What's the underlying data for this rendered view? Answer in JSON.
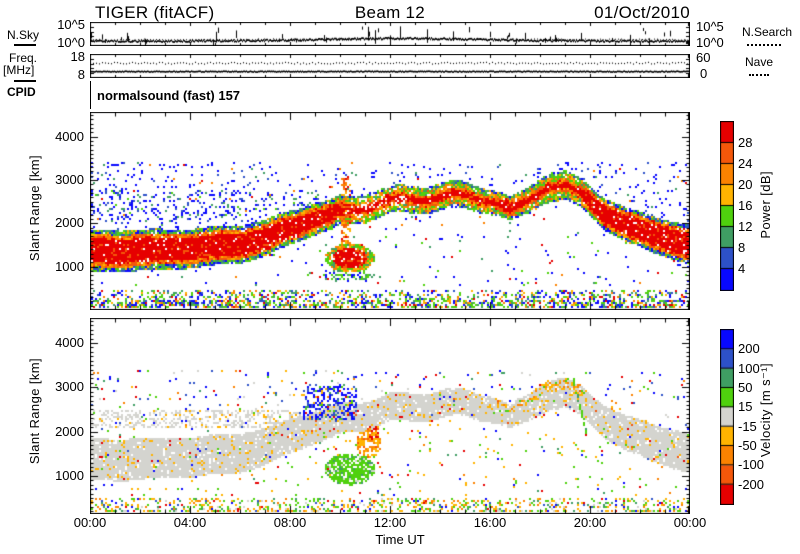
{
  "palette": {
    "red": "#e60000",
    "dkorange": "#f4570a",
    "orange": "#fb8200",
    "amber": "#ffb300",
    "green": "#4fd10e",
    "seagreen": "#3f9e63",
    "medblue": "#2d51c8",
    "blue": "#0808ff",
    "grey": "#d4d4cf"
  },
  "header": {
    "title": "TIGER (fitACF)",
    "beam": "Beam 12",
    "date": "01/Oct/2010"
  },
  "noise_row": {
    "axis_label": "N.Sky",
    "left_top": "10^5",
    "left_bottom": "10^0",
    "right_top": "10^5",
    "right_bottom": "10^0",
    "legend": "N.Search"
  },
  "freq_row": {
    "axis_label_line1": "Freq.",
    "axis_label_line2": "[MHz]",
    "left_top": "18",
    "left_bottom": "8",
    "right_top": "60",
    "right_bottom": "0",
    "legend": "Nave"
  },
  "cpid_row": {
    "label": "CPID",
    "value": "normalsound (fast) 157"
  },
  "xaxis": {
    "label": "Time UT",
    "tick_labels": [
      "00:00",
      "04:00",
      "08:00",
      "12:00",
      "16:00",
      "20:00",
      "00:00"
    ]
  },
  "yaxis_label": "Slant Range [km]",
  "power_colorbar": {
    "label": "Power [dB]",
    "tick_labels": [
      "28",
      "24",
      "20",
      "16",
      "12",
      "8",
      "4"
    ],
    "colors_top_to_bottom": [
      "red",
      "dkorange",
      "orange",
      "amber",
      "green",
      "seagreen",
      "medblue",
      "blue"
    ]
  },
  "velocity_colorbar": {
    "label": "Velocity [m s⁻¹]",
    "tick_labels": [
      "200",
      "100",
      "50",
      "15",
      "-15",
      "-50",
      "-100",
      "-200"
    ],
    "colors_top_to_bottom": [
      "blue",
      "medblue",
      "seagreen",
      "green",
      "grey",
      "amber",
      "orange",
      "dkorange",
      "red"
    ]
  },
  "chart_data": [
    {
      "id": "noise",
      "type": "line",
      "panel": "sky-noise",
      "yscale": "log",
      "ytick_values": [
        "10^0",
        "10^5"
      ],
      "seed": 7,
      "series": [
        {
          "name": "N.Sky",
          "style": "solid",
          "baseline_frac": 0.8,
          "midday_hump_frac": 0.11,
          "spike_prob": 0.085
        },
        {
          "name": "N.Search",
          "style": "dotted",
          "baseline_frac": 0.72,
          "midday_hump_frac": 0.05
        }
      ]
    },
    {
      "id": "freq",
      "type": "line",
      "panel": "frequency",
      "ytick_values": [
        8,
        18
      ],
      "seed": 11,
      "right_axis": {
        "name": "Nave",
        "ticks": [
          0,
          60
        ]
      },
      "series": [
        {
          "name": "Freq",
          "style": "solid",
          "level_frac": 0.7
        },
        {
          "name": "Nave",
          "style": "dotted",
          "level_frac": 0.36
        }
      ]
    },
    {
      "id": "power",
      "type": "heatmap",
      "x_hours": [
        0,
        24
      ],
      "km_top": 4573,
      "km_bottom": 0,
      "ytick_km": [
        1000,
        2000,
        3000,
        4000
      ],
      "xtick_hours": [
        0,
        4,
        8,
        12,
        16,
        20,
        24
      ],
      "units": "dB",
      "seed": 987654,
      "main_band": [
        [
          0,
          1350,
          450
        ],
        [
          2,
          1380,
          450
        ],
        [
          4,
          1420,
          430
        ],
        [
          6,
          1520,
          420
        ],
        [
          7,
          1650,
          400
        ],
        [
          8,
          1900,
          370
        ],
        [
          9,
          2100,
          350
        ],
        [
          10,
          2250,
          330
        ],
        [
          11,
          2400,
          310
        ],
        [
          12,
          2500,
          300
        ],
        [
          13,
          2560,
          300
        ],
        [
          14,
          2620,
          300
        ],
        [
          15,
          2620,
          290
        ],
        [
          16,
          2560,
          280
        ],
        [
          16.8,
          2330,
          260
        ],
        [
          17.5,
          2520,
          290
        ],
        [
          18.3,
          2820,
          330
        ],
        [
          19,
          2880,
          320
        ],
        [
          19.6,
          2700,
          320
        ],
        [
          20.5,
          2250,
          350
        ],
        [
          21.5,
          1950,
          380
        ],
        [
          22.5,
          1750,
          400
        ],
        [
          24,
          1500,
          430
        ]
      ],
      "red_core": [
        [
          0,
          0.62
        ],
        [
          8.5,
          0.55
        ],
        [
          10,
          0.42
        ],
        [
          10.8,
          0.24
        ],
        [
          16.3,
          0.24
        ],
        [
          16.6,
          0.5
        ],
        [
          17.6,
          0.2
        ],
        [
          19.5,
          0.18
        ],
        [
          20,
          0.55
        ],
        [
          24,
          0.62
        ]
      ],
      "hole_prob": [
        [
          0,
          0.05
        ],
        [
          10.2,
          0.05
        ],
        [
          10.6,
          0.2
        ],
        [
          12.6,
          0.2
        ],
        [
          13,
          0.06
        ],
        [
          24,
          0.06
        ]
      ],
      "streak": {
        "t": [
          10.05,
          10.45
        ],
        "km": [
          1500,
          3080
        ],
        "p": 0.5,
        "colors": [
          [
            "orange",
            4
          ],
          [
            "dkorange",
            3
          ],
          [
            "amber",
            2
          ],
          [
            "red",
            2
          ]
        ]
      },
      "blobs": [
        {
          "t": 10.4,
          "km": 1200,
          "rt": 1.0,
          "rkm": 330,
          "p": 0.85,
          "core": 0.5,
          "core_colors": [
            [
              "red",
              8
            ],
            [
              "dkorange",
              2
            ]
          ],
          "edge_colors": [
            [
              "green",
              4
            ],
            [
              "orange",
              3
            ],
            [
              "amber",
              2
            ],
            [
              "seagreen",
              1
            ]
          ]
        },
        {
          "t": 10.4,
          "km": 780,
          "rt": 1.1,
          "rkm": 150,
          "p": 0.35,
          "core": 0.0,
          "core_colors": [
            [
              "green",
              1
            ]
          ],
          "edge_colors": [
            [
              "green",
              5
            ],
            [
              "seagreen",
              3
            ],
            [
              "blue",
              2
            ]
          ]
        }
      ],
      "cloud": {
        "t": [
          0,
          9.2
        ],
        "km": [
          2050,
          2750
        ],
        "p": 0.13,
        "colors": [
          [
            "blue",
            5
          ],
          [
            "medblue",
            3
          ],
          [
            "seagreen",
            2
          ],
          [
            "green",
            1
          ]
        ]
      },
      "above_prob": [
        [
          0,
          0.1
        ],
        [
          9.5,
          0.05
        ],
        [
          12,
          0.08
        ],
        [
          16.5,
          0.045
        ],
        [
          20,
          0.07
        ],
        [
          24,
          0.07
        ]
      ],
      "above_colors": [
        [
          "blue",
          7
        ],
        [
          "medblue",
          2
        ],
        [
          "seagreen",
          1
        ],
        [
          "orange",
          0.5
        ],
        [
          "red",
          0.3
        ]
      ],
      "below_colors": [
        [
          "blue",
          4
        ],
        [
          "green",
          2
        ],
        [
          "seagreen",
          1
        ],
        [
          "orange",
          1
        ],
        [
          "red",
          1
        ]
      ],
      "bottom_colors": [
        [
          "green",
          28
        ],
        [
          "blue",
          22
        ],
        [
          "seagreen",
          14
        ],
        [
          "amber",
          12
        ],
        [
          "medblue",
          8
        ],
        [
          "orange",
          8
        ],
        [
          "red",
          8
        ]
      ],
      "band_colors_inner": [
        [
          "dkorange",
          5
        ],
        [
          "orange",
          4
        ],
        [
          "red",
          2
        ],
        [
          "amber",
          2
        ]
      ],
      "band_colors_mid": [
        [
          "green",
          5
        ],
        [
          "amber",
          3
        ],
        [
          "orange",
          3
        ],
        [
          "seagreen",
          2
        ],
        [
          "dkorange",
          1
        ]
      ],
      "band_colors_edge": [
        [
          "seagreen",
          3
        ],
        [
          "green",
          3
        ],
        [
          "medblue",
          2
        ],
        [
          "blue",
          2
        ],
        [
          "amber",
          1
        ]
      ]
    },
    {
      "id": "velocity",
      "type": "heatmap",
      "x_hours": [
        0,
        24
      ],
      "km_top": 4563,
      "km_bottom": 140,
      "ytick_km": [
        1000,
        2000,
        3000,
        4000
      ],
      "xtick_hours": [
        0,
        4,
        8,
        12,
        16,
        20,
        24
      ],
      "units": "m/s",
      "seed": 24681357,
      "main_band_ref": "power",
      "grey_p": 0.93,
      "amber_speckle_p": 0.07,
      "dot_colors": [
        [
          "red",
          2
        ],
        [
          "blue",
          2
        ],
        [
          "green",
          2
        ],
        [
          "dkorange",
          1
        ],
        [
          "medblue",
          1
        ]
      ],
      "grey_band2": {
        "t": [
          0,
          8.6
        ],
        "km": [
          2080,
          2480
        ],
        "p": 0.32
      },
      "blue_patch": {
        "t": [
          8.55,
          10.7
        ],
        "km": [
          2250,
          3020
        ],
        "p": 0.42,
        "colors": [
          [
            "blue",
            11
          ],
          [
            "medblue",
            4
          ],
          [
            "green",
            2
          ],
          [
            "seagreen",
            1
          ],
          [
            "red",
            1
          ],
          [
            "amber",
            1
          ]
        ]
      },
      "green_blob": {
        "t": 10.4,
        "km": 1150,
        "rt": 1.0,
        "rkm": 360,
        "p": 0.75,
        "colors": [
          [
            "green",
            8
          ],
          [
            "seagreen",
            1
          ],
          [
            "grey",
            1
          ]
        ]
      },
      "orange_blob": {
        "t": 11.15,
        "km": 1750,
        "rt": 0.5,
        "rkm": 330,
        "p": 0.65,
        "colors": [
          [
            "amber",
            5
          ],
          [
            "orange",
            3
          ],
          [
            "dkorange",
            1
          ]
        ]
      },
      "red_spot": {
        "t": 11.32,
        "km": 1980,
        "rt": 0.28,
        "rkm": 170,
        "p": 0.7,
        "colors": [
          [
            "red",
            3
          ],
          [
            "dkorange",
            1
          ]
        ]
      },
      "green_streak": {
        "t": [
          19.35,
          19.9
        ],
        "km_start": 3150,
        "km_end": 1900,
        "halfwidth": 90,
        "p": 0.85,
        "colors": [
          [
            "green",
            9
          ],
          [
            "seagreen",
            1
          ]
        ]
      },
      "hump_amber": {
        "t": [
          16.3,
          19.9
        ],
        "p": 0.3,
        "colors": [
          [
            "amber",
            6
          ],
          [
            "orange",
            3
          ],
          [
            "green",
            1
          ]
        ]
      },
      "above_prob": 0.04,
      "above_colors": [
        [
          "blue",
          22
        ],
        [
          "medblue",
          14
        ],
        [
          "green",
          14
        ],
        [
          "seagreen",
          8
        ],
        [
          "amber",
          14
        ],
        [
          "orange",
          8
        ],
        [
          "red",
          10
        ],
        [
          "grey",
          10
        ]
      ],
      "below_colors": [
        [
          "green",
          3
        ],
        [
          "amber",
          3
        ],
        [
          "red",
          1
        ],
        [
          "blue",
          1
        ],
        [
          "seagreen",
          1
        ],
        [
          "orange",
          1
        ]
      ],
      "bottom_colors": [
        [
          "green",
          30
        ],
        [
          "amber",
          26
        ],
        [
          "orange",
          12
        ],
        [
          "seagreen",
          8
        ],
        [
          "grey",
          8
        ],
        [
          "blue",
          6
        ],
        [
          "medblue",
          4
        ],
        [
          "red",
          6
        ]
      ]
    }
  ]
}
